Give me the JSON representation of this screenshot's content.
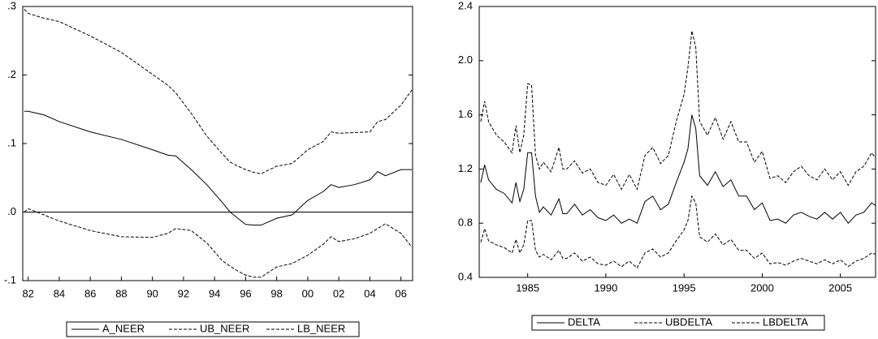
{
  "chart_data": [
    {
      "type": "line",
      "x": [
        1981.75,
        1982,
        1983,
        1984,
        1986,
        1988,
        1990,
        1991,
        1991.5,
        1992.5,
        1993.5,
        1994.5,
        1995,
        1995.5,
        1996,
        1996.5,
        1997,
        1998,
        1999,
        2000,
        2001,
        2001.5,
        2002,
        2003,
        2004,
        2004.5,
        2005,
        2006,
        2006.7
      ],
      "series": [
        {
          "name": "A_NEER",
          "color": "#000000",
          "dash": "solid",
          "values": [
            0.147,
            0.147,
            0.142,
            0.132,
            0.117,
            0.106,
            0.091,
            0.083,
            0.082,
            0.062,
            0.04,
            0.014,
            0,
            -0.009,
            -0.018,
            -0.019,
            -0.019,
            -0.009,
            -0.004,
            0.017,
            0.03,
            0.04,
            0.036,
            0.04,
            0.047,
            0.059,
            0.053,
            0.062,
            0.062
          ]
        },
        {
          "name": "UB_NEER",
          "color": "#000000",
          "dash": "dashed",
          "values": [
            0.296,
            0.29,
            0.283,
            0.278,
            0.257,
            0.233,
            0.201,
            0.185,
            0.174,
            0.144,
            0.111,
            0.085,
            0.073,
            0.067,
            0.062,
            0.058,
            0.056,
            0.067,
            0.071,
            0.091,
            0.103,
            0.117,
            0.115,
            0.116,
            0.117,
            0.132,
            0.135,
            0.156,
            0.178
          ]
        },
        {
          "name": "LB_NEER",
          "color": "#000000",
          "dash": "dashed",
          "values": [
            0,
            0.005,
            -0.004,
            -0.013,
            -0.027,
            -0.036,
            -0.037,
            -0.031,
            -0.024,
            -0.027,
            -0.045,
            -0.071,
            -0.079,
            -0.086,
            -0.092,
            -0.095,
            -0.095,
            -0.08,
            -0.075,
            -0.063,
            -0.047,
            -0.036,
            -0.043,
            -0.039,
            -0.031,
            -0.024,
            -0.017,
            -0.031,
            -0.051
          ]
        }
      ],
      "xlim": [
        1981.65,
        2006.75
      ],
      "xticks": [
        {
          "value": 1982,
          "label": "82"
        },
        {
          "value": 1984,
          "label": "84"
        },
        {
          "value": 1986,
          "label": "86"
        },
        {
          "value": 1988,
          "label": "88"
        },
        {
          "value": 1990,
          "label": "90"
        },
        {
          "value": 1992,
          "label": "92"
        },
        {
          "value": 1994,
          "label": "94"
        },
        {
          "value": 1996,
          "label": "96"
        },
        {
          "value": 1998,
          "label": "98"
        },
        {
          "value": 2000,
          "label": "00"
        },
        {
          "value": 2002,
          "label": "02"
        },
        {
          "value": 2004,
          "label": "04"
        },
        {
          "value": 2006,
          "label": "06"
        }
      ],
      "ylim": [
        -0.1,
        0.3
      ],
      "yticks": [
        {
          "value": -0.1,
          "label": "-.1"
        },
        {
          "value": 0,
          "label": ".0"
        },
        {
          "value": 0.1,
          "label": ".1"
        },
        {
          "value": 0.2,
          "label": ".2"
        },
        {
          "value": 0.3,
          "label": ".3"
        }
      ],
      "hline": 0
    },
    {
      "type": "line",
      "x": [
        1982,
        1982.25,
        1982.5,
        1983,
        1983.5,
        1984,
        1984.25,
        1984.5,
        1984.75,
        1985,
        1985.25,
        1985.5,
        1985.75,
        1986,
        1986.5,
        1987,
        1987.25,
        1987.5,
        1988,
        1988.5,
        1989,
        1989.5,
        1990,
        1990.5,
        1991,
        1991.5,
        1992,
        1992.5,
        1993,
        1993.5,
        1994,
        1994.5,
        1995,
        1995.25,
        1995.5,
        1995.75,
        1996,
        1996.5,
        1997,
        1997.5,
        1998,
        1998.5,
        1999,
        1999.5,
        2000,
        2000.5,
        2001,
        2001.5,
        2002,
        2002.5,
        2003,
        2003.5,
        2004,
        2004.5,
        2005,
        2005.5,
        2006,
        2006.5,
        2007,
        2007.25
      ],
      "series": [
        {
          "name": "DELTA",
          "color": "#000000",
          "dash": "solid",
          "values": [
            1.1,
            1.23,
            1.12,
            1.05,
            1.02,
            0.95,
            1.1,
            0.96,
            1.05,
            1.32,
            1.32,
            1.0,
            0.88,
            0.92,
            0.86,
            0.98,
            0.87,
            0.87,
            0.94,
            0.86,
            0.9,
            0.84,
            0.82,
            0.86,
            0.8,
            0.83,
            0.8,
            0.96,
            1.0,
            0.9,
            0.94,
            1.1,
            1.25,
            1.35,
            1.6,
            1.5,
            1.15,
            1.08,
            1.18,
            1.07,
            1.12,
            1.0,
            1.0,
            0.9,
            0.95,
            0.82,
            0.83,
            0.8,
            0.86,
            0.88,
            0.85,
            0.83,
            0.88,
            0.83,
            0.88,
            0.8,
            0.86,
            0.88,
            0.95,
            0.93
          ]
        },
        {
          "name": "UBDELTA",
          "color": "#000000",
          "dash": "dashed",
          "values": [
            1.55,
            1.7,
            1.55,
            1.45,
            1.4,
            1.32,
            1.52,
            1.32,
            1.45,
            1.83,
            1.82,
            1.3,
            1.2,
            1.25,
            1.18,
            1.36,
            1.2,
            1.2,
            1.26,
            1.17,
            1.2,
            1.1,
            1.08,
            1.16,
            1.05,
            1.16,
            1.05,
            1.3,
            1.36,
            1.24,
            1.3,
            1.55,
            1.75,
            1.95,
            2.22,
            2.1,
            1.55,
            1.45,
            1.58,
            1.42,
            1.55,
            1.4,
            1.4,
            1.25,
            1.33,
            1.13,
            1.15,
            1.1,
            1.18,
            1.22,
            1.15,
            1.12,
            1.2,
            1.12,
            1.18,
            1.08,
            1.18,
            1.22,
            1.32,
            1.28
          ]
        },
        {
          "name": "LBDELTA",
          "color": "#000000",
          "dash": "dashed",
          "values": [
            0.66,
            0.76,
            0.67,
            0.64,
            0.62,
            0.58,
            0.68,
            0.58,
            0.64,
            0.82,
            0.82,
            0.6,
            0.55,
            0.57,
            0.53,
            0.6,
            0.54,
            0.54,
            0.58,
            0.52,
            0.55,
            0.5,
            0.49,
            0.52,
            0.48,
            0.52,
            0.47,
            0.58,
            0.61,
            0.55,
            0.58,
            0.67,
            0.75,
            0.82,
            1.0,
            0.95,
            0.7,
            0.66,
            0.72,
            0.64,
            0.68,
            0.6,
            0.6,
            0.54,
            0.58,
            0.5,
            0.51,
            0.49,
            0.52,
            0.54,
            0.52,
            0.5,
            0.53,
            0.5,
            0.53,
            0.48,
            0.52,
            0.54,
            0.58,
            0.57
          ]
        }
      ],
      "xlim": [
        1981.9,
        2007.25
      ],
      "xticks": [
        1985,
        1990,
        1995,
        2000,
        2005
      ],
      "ylim": [
        0.4,
        2.4
      ],
      "yticks": [
        0.4,
        0.8,
        1.2,
        1.6,
        {
          "value": 2,
          "label": "2.0"
        },
        2.4
      ]
    }
  ]
}
